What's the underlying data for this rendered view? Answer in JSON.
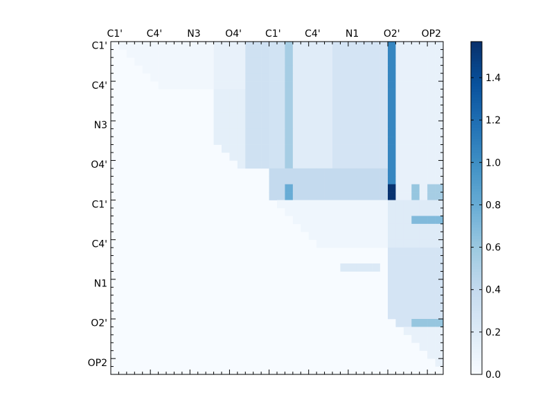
{
  "chart_data": {
    "type": "heatmap",
    "title": "",
    "xlabel": "",
    "ylabel": "",
    "n": 42,
    "tick_labels": [
      "C1'",
      "C4'",
      "N3",
      "O4'",
      "C1'",
      "C4'",
      "N1",
      "O2'",
      "OP2"
    ],
    "tick_label_indices": [
      0,
      5,
      10,
      15,
      20,
      25,
      30,
      35,
      40
    ],
    "colormap": "Blues",
    "colormap_stops": [
      "#f7fbff",
      "#deebf7",
      "#c6dbef",
      "#9ecae1",
      "#6baed6",
      "#4292c6",
      "#2171b5",
      "#08519c",
      "#08306b"
    ],
    "colorbar": {
      "min": 0.0,
      "max": 1.57,
      "ticks": [
        0.0,
        0.2,
        0.4,
        0.6,
        0.8,
        1.0,
        1.2,
        1.4
      ],
      "tick_labels": [
        "0.0",
        "0.2",
        "0.4",
        "0.6",
        "0.8",
        "1.0",
        "1.2",
        "1.4"
      ]
    },
    "region_values": [
      {
        "rows": [
          0,
          6
        ],
        "cols": [
          1,
          13
        ],
        "value": 0.05
      },
      {
        "rows": [
          0,
          6
        ],
        "cols": [
          13,
          20
        ],
        "value": 0.12
      },
      {
        "rows": [
          6,
          16
        ],
        "cols": [
          13,
          20
        ],
        "value": 0.15
      },
      {
        "rows": [
          0,
          16
        ],
        "cols": [
          17,
          20
        ],
        "value": 0.32
      },
      {
        "rows": [
          0,
          20
        ],
        "cols": [
          20,
          22
        ],
        "value": 0.3
      },
      {
        "rows": [
          0,
          20
        ],
        "cols": [
          22,
          23
        ],
        "value": 0.55
      },
      {
        "rows": [
          0,
          20
        ],
        "cols": [
          23,
          28
        ],
        "value": 0.18
      },
      {
        "rows": [
          0,
          20
        ],
        "cols": [
          28,
          35
        ],
        "value": 0.28
      },
      {
        "rows": [
          0,
          20
        ],
        "cols": [
          35,
          36
        ],
        "value": 1.05
      },
      {
        "rows": [
          0,
          20
        ],
        "cols": [
          36,
          42
        ],
        "value": 0.12
      },
      {
        "rows": [
          16,
          20
        ],
        "cols": [
          20,
          35
        ],
        "value": 0.4
      },
      {
        "rows": [
          18,
          20
        ],
        "cols": [
          22,
          23
        ],
        "value": 0.8
      },
      {
        "rows": [
          18,
          20
        ],
        "cols": [
          35,
          36
        ],
        "value": 1.55
      },
      {
        "rows": [
          18,
          20
        ],
        "cols": [
          38,
          39
        ],
        "value": 0.62
      },
      {
        "rows": [
          18,
          20
        ],
        "cols": [
          40,
          42
        ],
        "value": 0.55
      },
      {
        "rows": [
          20,
          26
        ],
        "cols": [
          21,
          35
        ],
        "value": 0.06
      },
      {
        "rows": [
          20,
          26
        ],
        "cols": [
          35,
          42
        ],
        "value": 0.2
      },
      {
        "rows": [
          22,
          23
        ],
        "cols": [
          38,
          42
        ],
        "value": 0.7
      },
      {
        "rows": [
          26,
          36
        ],
        "cols": [
          35,
          42
        ],
        "value": 0.28
      },
      {
        "rows": [
          28,
          29
        ],
        "cols": [
          28,
          34
        ],
        "value": 0.22
      },
      {
        "rows": [
          36,
          42
        ],
        "cols": [
          36,
          42
        ],
        "value": 0.12
      },
      {
        "rows": [
          35,
          36
        ],
        "cols": [
          38,
          42
        ],
        "value": 0.62
      }
    ]
  }
}
